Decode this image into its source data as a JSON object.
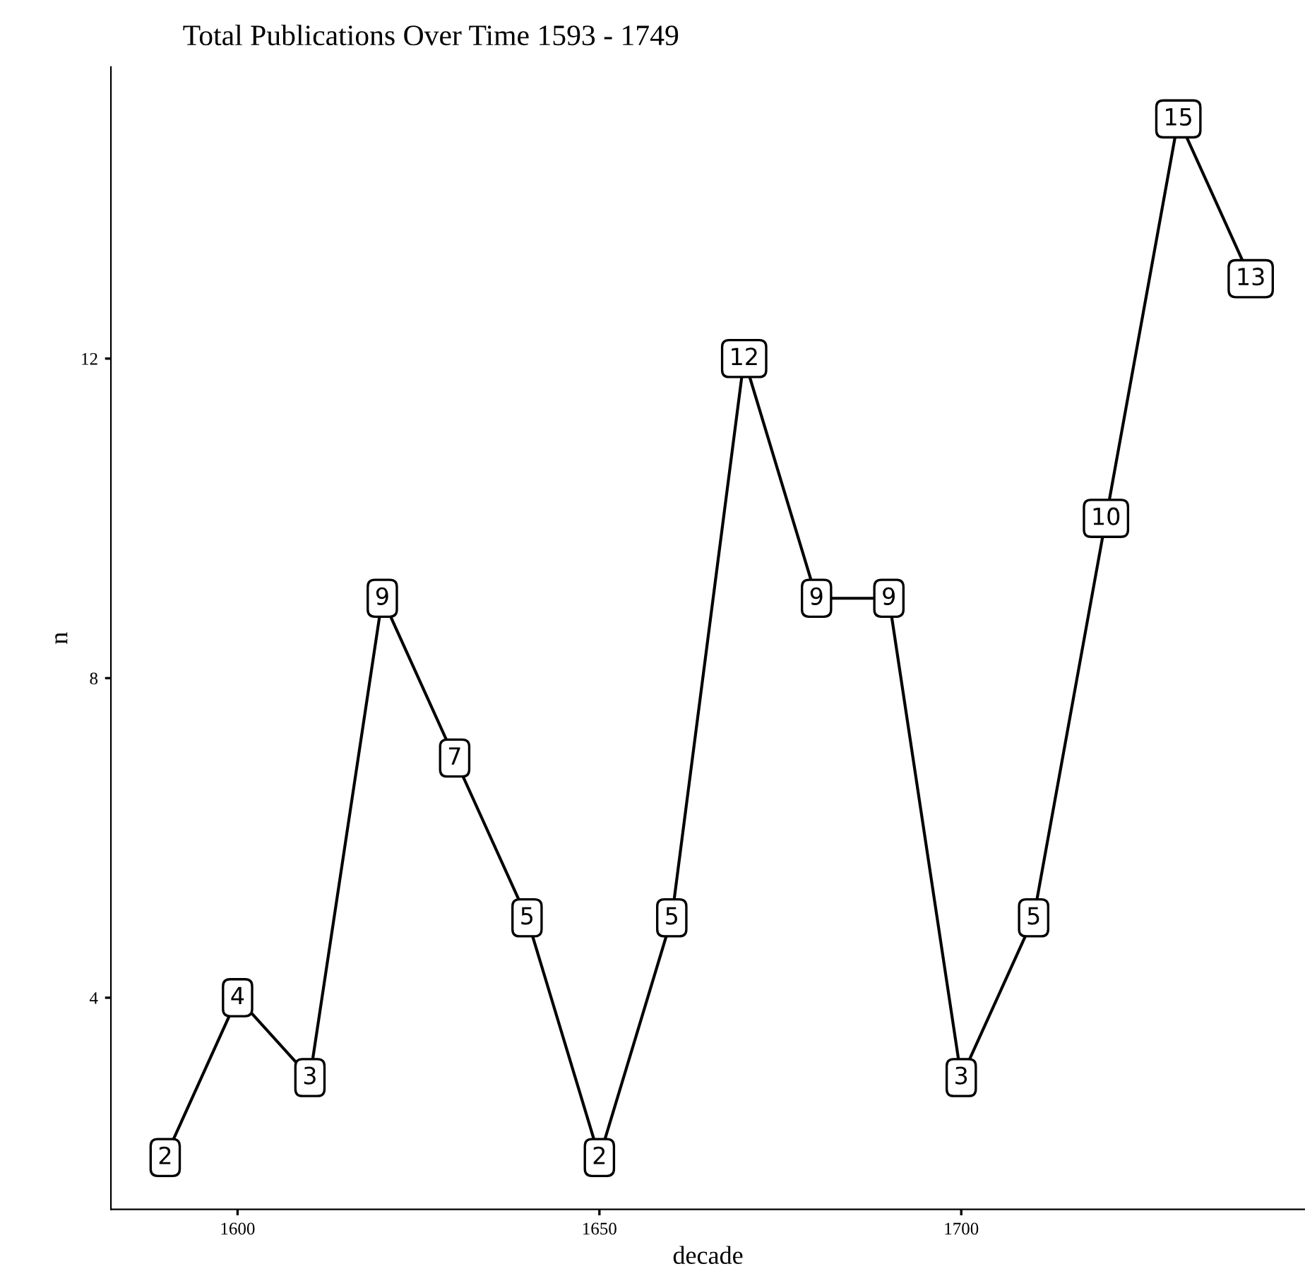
{
  "chart_data": {
    "type": "line",
    "title": "Total Publications Over Time 1593 - 1749",
    "xlabel": "decade",
    "ylabel": "n",
    "x": [
      1590,
      1600,
      1610,
      1620,
      1630,
      1640,
      1650,
      1660,
      1670,
      1680,
      1690,
      1700,
      1710,
      1720,
      1730,
      1740
    ],
    "series": [
      {
        "color": "#000000",
        "values": [
          2,
          4,
          3,
          9,
          7,
          5,
          2,
          5,
          12,
          9,
          9,
          3,
          5,
          10,
          15,
          13
        ]
      }
    ],
    "xlim": [
      1582.5,
      1747.5
    ],
    "ylim": [
      1.35,
      15.65
    ],
    "xticks": [
      1600,
      1650,
      1700
    ],
    "yticks": [
      4,
      8,
      12
    ],
    "data_labels": true,
    "grid": false,
    "legend": false,
    "marker": "square",
    "line_style": "solid"
  }
}
